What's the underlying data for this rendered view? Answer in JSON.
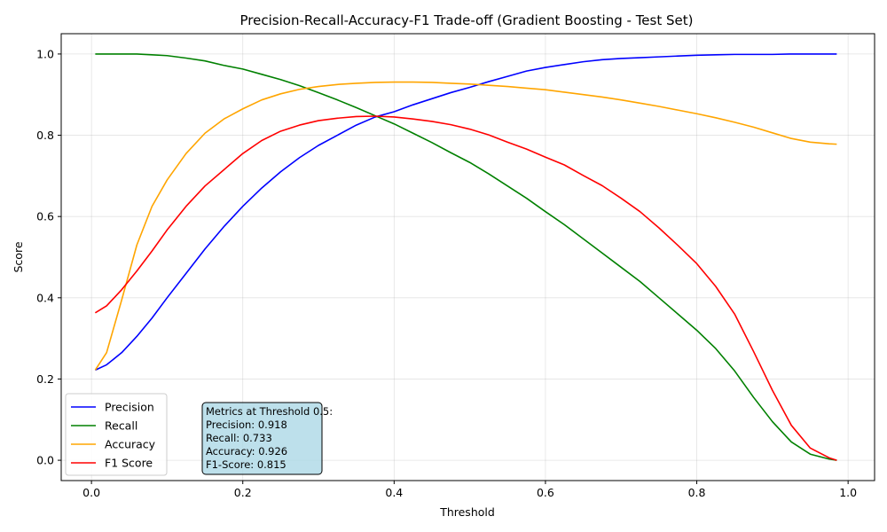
{
  "chart_data": {
    "type": "line",
    "title": "Precision-Recall-Accuracy-F1 Trade-off (Gradient Boosting - Test Set)",
    "xlabel": "Threshold",
    "ylabel": "Score",
    "xlim": [
      -0.04,
      1.035
    ],
    "ylim": [
      -0.05,
      1.05
    ],
    "xticks": [
      0.0,
      0.2,
      0.4,
      0.6,
      0.8,
      1.0
    ],
    "xtick_labels": [
      "0.0",
      "0.2",
      "0.4",
      "0.6",
      "0.8",
      "1.0"
    ],
    "yticks": [
      0.0,
      0.2,
      0.4,
      0.6,
      0.8,
      1.0
    ],
    "ytick_labels": [
      "0.0",
      "0.2",
      "0.4",
      "0.6",
      "0.8",
      "1.0"
    ],
    "grid": true,
    "legend_position": "lower-left",
    "x": [
      0.005,
      0.02,
      0.04,
      0.06,
      0.08,
      0.1,
      0.125,
      0.15,
      0.175,
      0.2,
      0.225,
      0.25,
      0.275,
      0.3,
      0.325,
      0.35,
      0.375,
      0.4,
      0.425,
      0.45,
      0.475,
      0.5,
      0.525,
      0.55,
      0.575,
      0.6,
      0.625,
      0.65,
      0.675,
      0.7,
      0.725,
      0.75,
      0.775,
      0.8,
      0.825,
      0.85,
      0.875,
      0.9,
      0.925,
      0.95,
      0.975,
      0.985
    ],
    "series": [
      {
        "name": "Precision",
        "color": "#0000ff",
        "values": [
          0.222,
          0.235,
          0.265,
          0.305,
          0.35,
          0.4,
          0.46,
          0.52,
          0.575,
          0.625,
          0.67,
          0.71,
          0.745,
          0.775,
          0.8,
          0.825,
          0.845,
          0.858,
          0.875,
          0.89,
          0.905,
          0.918,
          0.932,
          0.945,
          0.958,
          0.967,
          0.974,
          0.981,
          0.986,
          0.989,
          0.991,
          0.993,
          0.995,
          0.997,
          0.998,
          0.999,
          0.999,
          0.999,
          1.0,
          1.0,
          1.0,
          1.0
        ]
      },
      {
        "name": "Recall",
        "color": "#008000",
        "values": [
          1.0,
          1.0,
          1.0,
          1.0,
          0.998,
          0.996,
          0.99,
          0.983,
          0.972,
          0.963,
          0.95,
          0.937,
          0.922,
          0.905,
          0.887,
          0.868,
          0.848,
          0.828,
          0.805,
          0.782,
          0.757,
          0.733,
          0.705,
          0.675,
          0.645,
          0.612,
          0.58,
          0.545,
          0.51,
          0.475,
          0.44,
          0.4,
          0.36,
          0.32,
          0.275,
          0.22,
          0.155,
          0.095,
          0.045,
          0.015,
          0.003,
          0.0
        ]
      },
      {
        "name": "Accuracy",
        "color": "#ffa500",
        "values": [
          0.222,
          0.265,
          0.395,
          0.53,
          0.625,
          0.69,
          0.755,
          0.805,
          0.84,
          0.865,
          0.887,
          0.902,
          0.913,
          0.92,
          0.925,
          0.928,
          0.93,
          0.931,
          0.931,
          0.93,
          0.928,
          0.926,
          0.923,
          0.92,
          0.916,
          0.912,
          0.906,
          0.9,
          0.894,
          0.887,
          0.879,
          0.871,
          0.862,
          0.853,
          0.843,
          0.832,
          0.82,
          0.806,
          0.792,
          0.783,
          0.779,
          0.778
        ]
      },
      {
        "name": "F1 Score",
        "color": "#ff0000",
        "values": [
          0.363,
          0.38,
          0.42,
          0.466,
          0.515,
          0.567,
          0.625,
          0.675,
          0.715,
          0.755,
          0.787,
          0.81,
          0.825,
          0.836,
          0.842,
          0.846,
          0.847,
          0.845,
          0.84,
          0.834,
          0.826,
          0.815,
          0.801,
          0.783,
          0.766,
          0.746,
          0.727,
          0.701,
          0.676,
          0.645,
          0.612,
          0.572,
          0.529,
          0.484,
          0.428,
          0.36,
          0.268,
          0.172,
          0.086,
          0.03,
          0.006,
          0.0
        ]
      }
    ],
    "legend_entries": [
      "Precision",
      "Recall",
      "Accuracy",
      "F1 Score"
    ],
    "annotation": {
      "lines": [
        "Metrics at Threshold 0.5:",
        "Precision: 0.918",
        "Recall: 0.733",
        "Accuracy: 0.926",
        "F1-Score: 0.815"
      ],
      "background": "#add8e6"
    }
  }
}
